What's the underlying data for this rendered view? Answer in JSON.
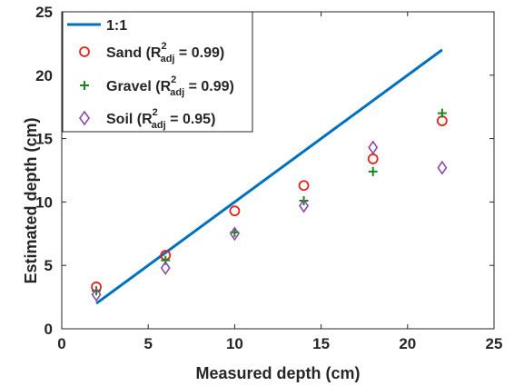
{
  "chart_data": {
    "type": "scatter",
    "xlabel": "Measured depth (cm)",
    "ylabel": "Estimated depth (cm)",
    "xlim": [
      0,
      25
    ],
    "ylim": [
      0,
      25
    ],
    "xticks": [
      "0",
      "5",
      "10",
      "15",
      "20",
      "25"
    ],
    "yticks": [
      "0",
      "5",
      "10",
      "15",
      "20",
      "25"
    ],
    "grid": false,
    "legend_position": "top-left",
    "colors": {
      "line": "#0072BD",
      "sand": "#e8201a",
      "gravel": "#17891a",
      "soil": "#8a4aa8"
    },
    "legend": {
      "line": "1:1",
      "sand": {
        "prefix": "Sand (R",
        "sup": "2",
        "sub": "adj",
        "suffix": " = 0.99)"
      },
      "gravel": {
        "prefix": "Gravel (R",
        "sup": "2",
        "sub": "adj",
        "suffix": " = 0.99)"
      },
      "soil": {
        "prefix": "Soil (R",
        "sup": "2",
        "sub": "adj",
        "suffix": " = 0.95)"
      }
    },
    "line": {
      "name": "1:1",
      "x": [
        2,
        22
      ],
      "y": [
        2,
        22
      ]
    },
    "series": [
      {
        "name": "Sand (R2adj = 0.99)",
        "marker": "circle",
        "x": [
          2,
          6,
          10,
          14,
          18,
          22
        ],
        "y": [
          3.3,
          5.8,
          9.3,
          11.3,
          13.4,
          16.4
        ]
      },
      {
        "name": "Gravel (R2adj = 0.99)",
        "marker": "plus",
        "x": [
          2,
          6,
          10,
          14,
          18,
          22
        ],
        "y": [
          3.0,
          5.4,
          7.6,
          10.1,
          12.4,
          17.0
        ]
      },
      {
        "name": "Soil (R2adj = 0.95)",
        "marker": "diamond",
        "x": [
          2,
          6,
          10,
          14,
          18,
          22
        ],
        "y": [
          2.7,
          4.8,
          7.5,
          9.7,
          14.3,
          12.7
        ]
      }
    ]
  }
}
